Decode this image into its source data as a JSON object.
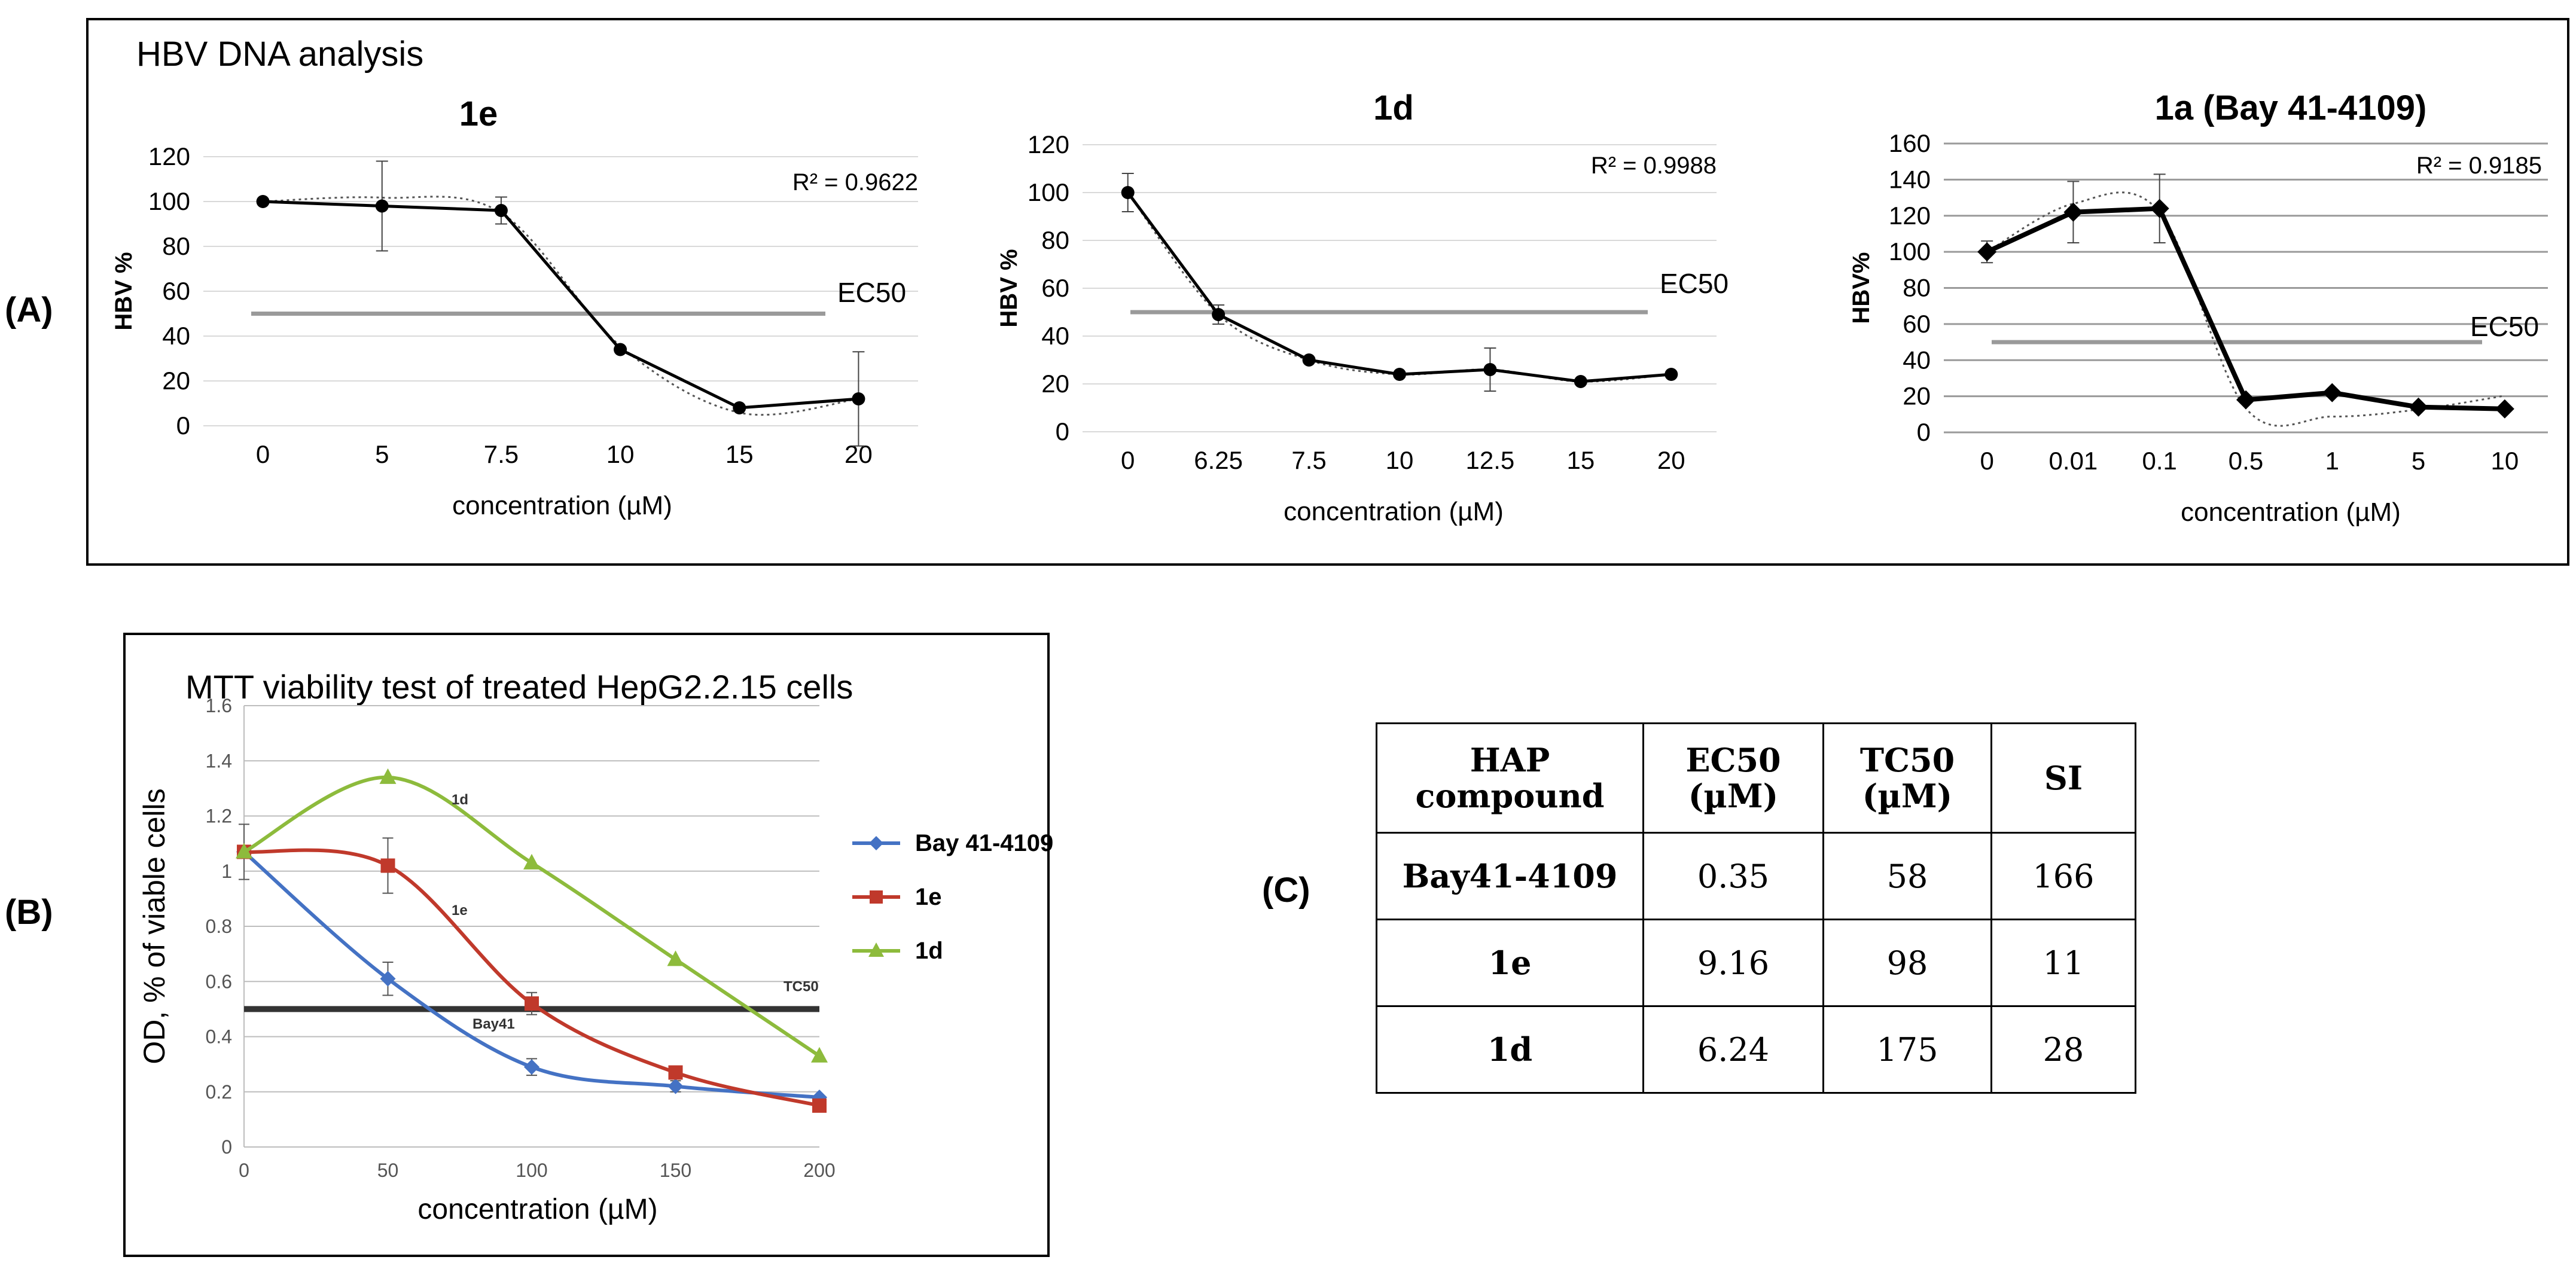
{
  "panelA": {
    "label": "(A)",
    "title": "HBV DNA analysis",
    "ec_label": "EC50",
    "xlabel": "concentration (µM)"
  },
  "panelB": {
    "label": "(B)",
    "tc_label": "TC50"
  },
  "panelC": {
    "label": "(C)",
    "headers": [
      "HAP compound",
      "EC50 (µM)",
      "TC50 (µM)",
      "SI"
    ],
    "rows": [
      [
        "Bay41-4109",
        "0.35",
        "58",
        "166"
      ],
      [
        "1e",
        "9.16",
        "98",
        "11"
      ],
      [
        "1d",
        "6.24",
        "175",
        "28"
      ]
    ]
  },
  "chart_data": [
    {
      "type": "line",
      "title": "1e",
      "categories": [
        "0",
        "5",
        "7.5",
        "10",
        "15",
        "20"
      ],
      "values": [
        100,
        98,
        96,
        34,
        8,
        12
      ],
      "errors": [
        0,
        20,
        6,
        0,
        0,
        21
      ],
      "xlabel": "concentration (µM)",
      "ylabel": "HBV %",
      "ylim": [
        0,
        120
      ],
      "yticks": [
        0,
        20,
        40,
        60,
        80,
        100,
        120
      ],
      "ec50": 50,
      "r2_label": "R² = 0.9622",
      "trendline": "polynomial (dotted)"
    },
    {
      "type": "line",
      "title": "1d",
      "categories": [
        "0",
        "6.25",
        "7.5",
        "10",
        "12.5",
        "15",
        "20"
      ],
      "values": [
        100,
        49,
        30,
        24,
        26,
        21,
        24
      ],
      "errors": [
        8,
        4,
        0,
        0,
        9,
        0,
        0
      ],
      "xlabel": "concentration (µM)",
      "ylabel": "HBV %",
      "ylim": [
        0,
        120
      ],
      "yticks": [
        0,
        20,
        40,
        60,
        80,
        100,
        120
      ],
      "ec50": 50,
      "r2_label": "R² = 0.9988",
      "trendline": "polynomial (dotted)"
    },
    {
      "type": "line",
      "title": "1a (Bay 41-4109)",
      "categories": [
        "0",
        "0.01",
        "0.1",
        "0.5",
        "1",
        "5",
        "10"
      ],
      "values": [
        100,
        122,
        124,
        18,
        22,
        14,
        13
      ],
      "errors": [
        6,
        17,
        19,
        0,
        0,
        0,
        0
      ],
      "xlabel": "concentration (µM)",
      "ylabel": "HBV%",
      "ylim": [
        0,
        160
      ],
      "yticks": [
        0,
        20,
        40,
        60,
        80,
        100,
        120,
        140,
        160
      ],
      "ec50": 50,
      "r2_label": "R² = 0.9185",
      "trendline": "polynomial (dotted)"
    },
    {
      "type": "line",
      "title": "MTT viability test of treated HepG2.2.15 cells",
      "x": [
        0,
        50,
        100,
        150,
        200
      ],
      "xticks": [
        "0",
        "50",
        "100",
        "150",
        "200"
      ],
      "xlabel": "concentration (µM)",
      "ylabel": "OD, % of viable cells",
      "ylim": [
        0,
        1.6
      ],
      "yticks": [
        "0",
        "0.2",
        "0.4",
        "0.6",
        "0.8",
        "1",
        "1.2",
        "1.4",
        "1.6"
      ],
      "tc50": 0.5,
      "series": [
        {
          "name": "Bay 41-4109",
          "color": "#4472c4",
          "marker": "diamond",
          "curve_label": "Bay41",
          "values": [
            1.07,
            0.61,
            0.29,
            0.22,
            0.18
          ]
        },
        {
          "name": "1e",
          "color": "#c0392b",
          "marker": "square",
          "curve_label": "1e",
          "values": [
            1.07,
            1.02,
            0.52,
            0.27,
            0.15
          ]
        },
        {
          "name": "1d",
          "color": "#8dbb3c",
          "marker": "triangle",
          "curve_label": "1d",
          "values": [
            1.07,
            1.34,
            1.03,
            0.68,
            0.33
          ]
        }
      ]
    }
  ]
}
